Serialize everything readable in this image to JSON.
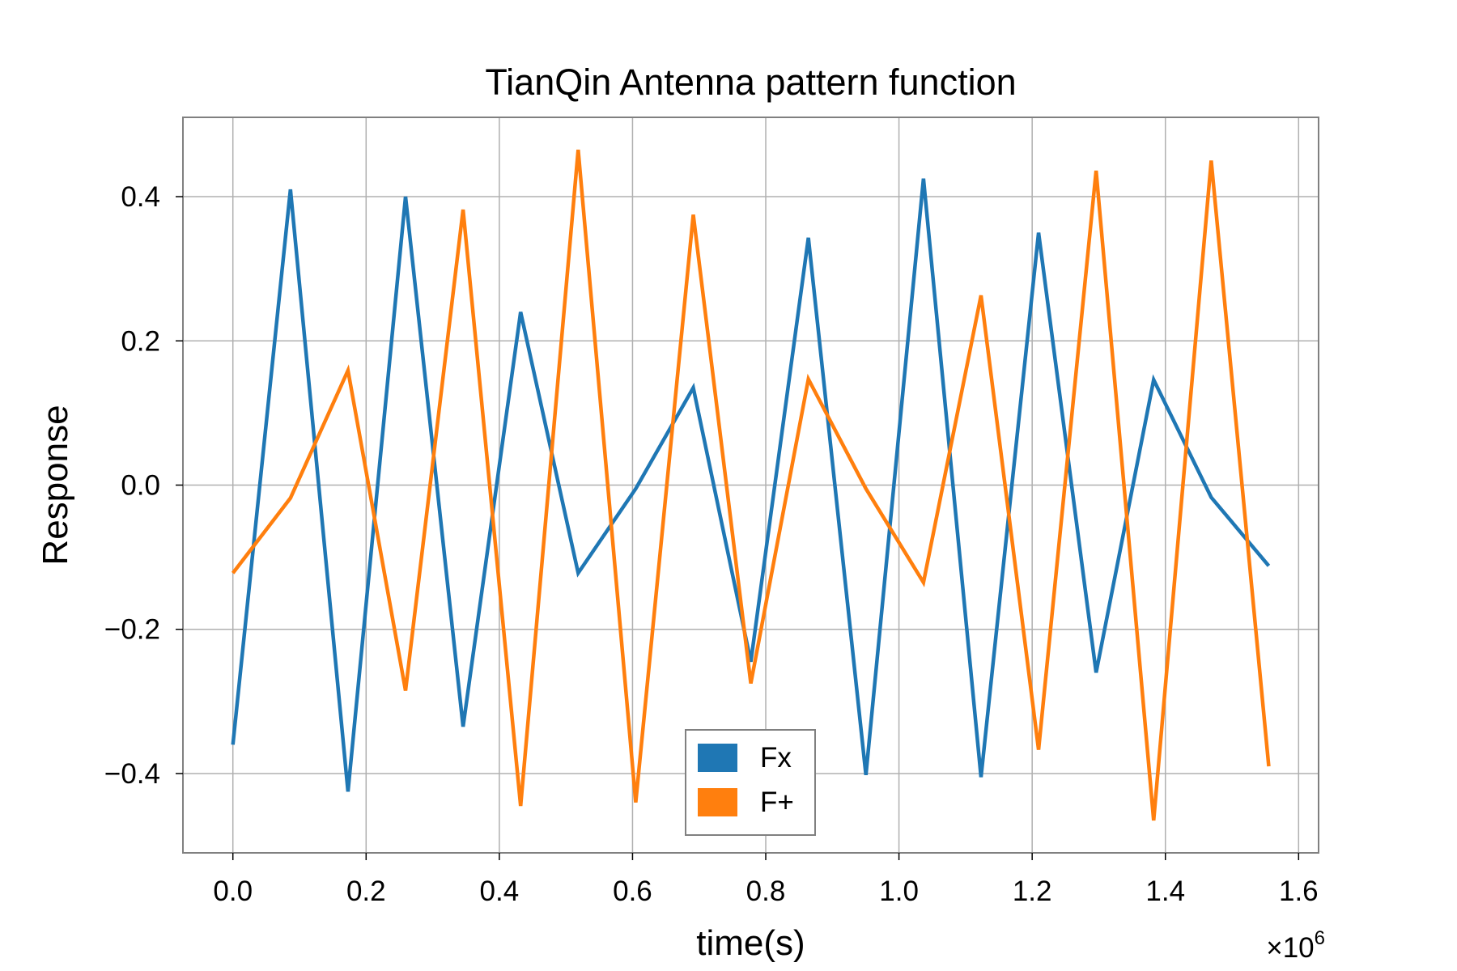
{
  "chart_data": {
    "type": "line",
    "title": "TianQin Antenna pattern function",
    "xlabel": "time(s)",
    "ylabel": "Response",
    "x_multiplier": "×10",
    "x_multiplier_exp": "6",
    "xlim": [
      -0.075,
      1.63
    ],
    "ylim": [
      -0.51,
      0.51
    ],
    "grid": true,
    "legend_position": "lower center",
    "x_ticks": [
      0.0,
      0.2,
      0.4,
      0.6,
      0.8,
      1.0,
      1.2,
      1.4,
      1.6
    ],
    "x_tick_labels": [
      "0.0",
      "0.2",
      "0.4",
      "0.6",
      "0.8",
      "1.0",
      "1.2",
      "1.4",
      "1.6"
    ],
    "y_ticks": [
      0.4,
      0.2,
      0.0,
      -0.2,
      -0.4
    ],
    "y_tick_labels": [
      "0.4",
      "0.2",
      "0.0",
      "−0.2",
      "−0.4"
    ],
    "x": [
      0.0,
      0.0864,
      0.1728,
      0.2592,
      0.3456,
      0.432,
      0.5184,
      0.6048,
      0.6912,
      0.7776,
      0.864,
      0.9504,
      1.0368,
      1.1232,
      1.2096,
      1.296,
      1.3824,
      1.4688,
      1.5552
    ],
    "series": [
      {
        "name": "Fx",
        "color": "#1f77b4",
        "values": [
          -0.36,
          0.41,
          -0.425,
          0.4,
          -0.335,
          0.24,
          -0.122,
          -0.005,
          0.135,
          -0.245,
          0.343,
          -0.402,
          0.425,
          -0.405,
          0.35,
          -0.26,
          0.146,
          -0.017,
          -0.112
        ]
      },
      {
        "name": "F+",
        "color": "#ff7f0e",
        "values": [
          -0.122,
          -0.018,
          0.159,
          -0.285,
          0.382,
          -0.445,
          0.465,
          -0.44,
          0.375,
          -0.275,
          0.147,
          -0.005,
          -0.135,
          0.263,
          -0.367,
          0.436,
          -0.465,
          0.45,
          -0.39
        ]
      }
    ]
  }
}
